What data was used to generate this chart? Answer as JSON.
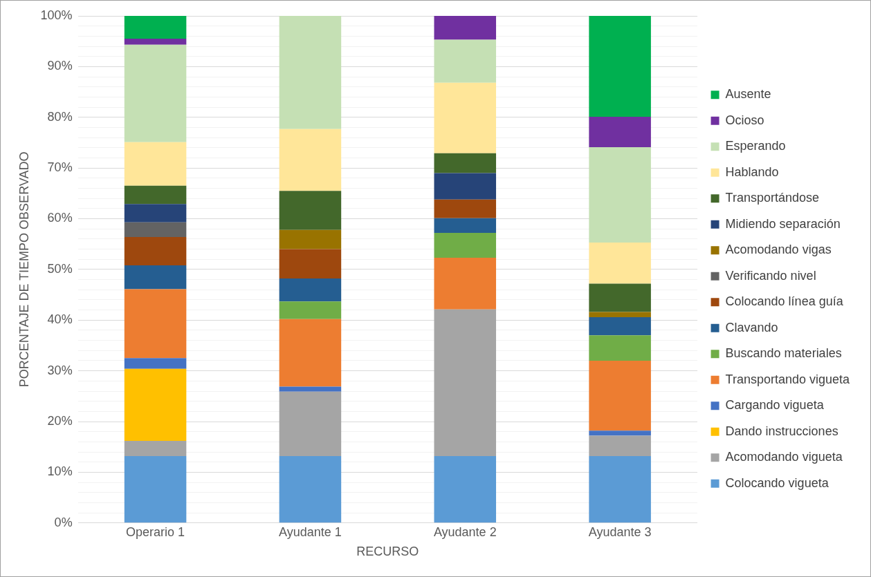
{
  "chart_data": {
    "type": "bar",
    "stacked": true,
    "xlabel": "RECURSO",
    "ylabel": "PORCENTAJE DE TIEMPO OBSERVADO",
    "categories": [
      "Operario 1",
      "Ayudante 1",
      "Ayudante 2",
      "Ayudante 3"
    ],
    "ylim": [
      0,
      100
    ],
    "yticks": [
      {
        "value": 0,
        "label": "0%"
      },
      {
        "value": 2,
        "label": null
      },
      {
        "value": 4,
        "label": null
      },
      {
        "value": 6,
        "label": null
      },
      {
        "value": 8,
        "label": null
      },
      {
        "value": 10,
        "label": "10%"
      },
      {
        "value": 12,
        "label": null
      },
      {
        "value": 14,
        "label": null
      },
      {
        "value": 16,
        "label": null
      },
      {
        "value": 18,
        "label": null
      },
      {
        "value": 20,
        "label": "20%"
      },
      {
        "value": 22,
        "label": null
      },
      {
        "value": 24,
        "label": null
      },
      {
        "value": 26,
        "label": null
      },
      {
        "value": 28,
        "label": null
      },
      {
        "value": 30,
        "label": "30%"
      },
      {
        "value": 32,
        "label": null
      },
      {
        "value": 34,
        "label": null
      },
      {
        "value": 36,
        "label": null
      },
      {
        "value": 38,
        "label": null
      },
      {
        "value": 40,
        "label": "40%"
      },
      {
        "value": 42,
        "label": null
      },
      {
        "value": 44,
        "label": null
      },
      {
        "value": 46,
        "label": null
      },
      {
        "value": 48,
        "label": null
      },
      {
        "value": 50,
        "label": "50%"
      },
      {
        "value": 52,
        "label": null
      },
      {
        "value": 54,
        "label": null
      },
      {
        "value": 56,
        "label": null
      },
      {
        "value": 58,
        "label": null
      },
      {
        "value": 60,
        "label": "60%"
      },
      {
        "value": 62,
        "label": null
      },
      {
        "value": 64,
        "label": null
      },
      {
        "value": 66,
        "label": null
      },
      {
        "value": 68,
        "label": null
      },
      {
        "value": 70,
        "label": "70%"
      },
      {
        "value": 72,
        "label": null
      },
      {
        "value": 74,
        "label": null
      },
      {
        "value": 76,
        "label": null
      },
      {
        "value": 78,
        "label": null
      },
      {
        "value": 80,
        "label": "80%"
      },
      {
        "value": 82,
        "label": null
      },
      {
        "value": 84,
        "label": null
      },
      {
        "value": 86,
        "label": null
      },
      {
        "value": 88,
        "label": null
      },
      {
        "value": 90,
        "label": "90%"
      },
      {
        "value": 92,
        "label": null
      },
      {
        "value": 94,
        "label": null
      },
      {
        "value": 96,
        "label": null
      },
      {
        "value": 98,
        "label": null
      },
      {
        "value": 100,
        "label": "100%"
      }
    ],
    "grid": "y",
    "legend": "right",
    "series": [
      {
        "name": "Colocando vigueta",
        "color": "#5b9bd5",
        "values": [
          13.2,
          13.2,
          13.2,
          13.2
        ]
      },
      {
        "name": "Acomodando vigueta",
        "color": "#a5a5a5",
        "values": [
          3,
          12.7,
          28.9,
          4
        ]
      },
      {
        "name": "Dando instrucciones",
        "color": "#ffc000",
        "values": [
          14.2,
          0,
          0,
          0
        ]
      },
      {
        "name": "Cargando vigueta",
        "color": "#4472c4",
        "values": [
          2.1,
          1,
          0,
          1
        ]
      },
      {
        "name": "Transportando vigueta",
        "color": "#ed7d31",
        "values": [
          13.6,
          13.3,
          10.2,
          13.8
        ]
      },
      {
        "name": "Buscando materiales",
        "color": "#70ad47",
        "values": [
          0,
          3.5,
          4.9,
          5
        ]
      },
      {
        "name": "Clavando",
        "color": "#255e91",
        "values": [
          4.7,
          4.5,
          2.9,
          3.6
        ]
      },
      {
        "name": "Colocando línea guía",
        "color": "#9e480e",
        "values": [
          5.6,
          5.8,
          3.7,
          0
        ]
      },
      {
        "name": "Verificando nivel",
        "color": "#636363",
        "values": [
          2.9,
          0,
          0,
          0
        ]
      },
      {
        "name": "Acomodando vigas",
        "color": "#997300",
        "values": [
          0,
          3.8,
          0,
          1
        ]
      },
      {
        "name": "Midiendo separación",
        "color": "#264478",
        "values": [
          3.6,
          0,
          5.2,
          0
        ]
      },
      {
        "name": "Transportándose",
        "color": "#43682b",
        "values": [
          3.6,
          7.7,
          3.9,
          5.6
        ]
      },
      {
        "name": "Hablando",
        "color": "#ffe699",
        "values": [
          8.6,
          12.2,
          13.9,
          8.1
        ]
      },
      {
        "name": "Esperando",
        "color": "#c5e0b4",
        "values": [
          19.2,
          22.3,
          8.5,
          18.8
        ]
      },
      {
        "name": "Ocioso",
        "color": "#7030a0",
        "values": [
          1.2,
          0,
          4.7,
          6
        ]
      },
      {
        "name": "Ausente",
        "color": "#00b050",
        "values": [
          4.5,
          0,
          0,
          19.9
        ]
      }
    ]
  }
}
